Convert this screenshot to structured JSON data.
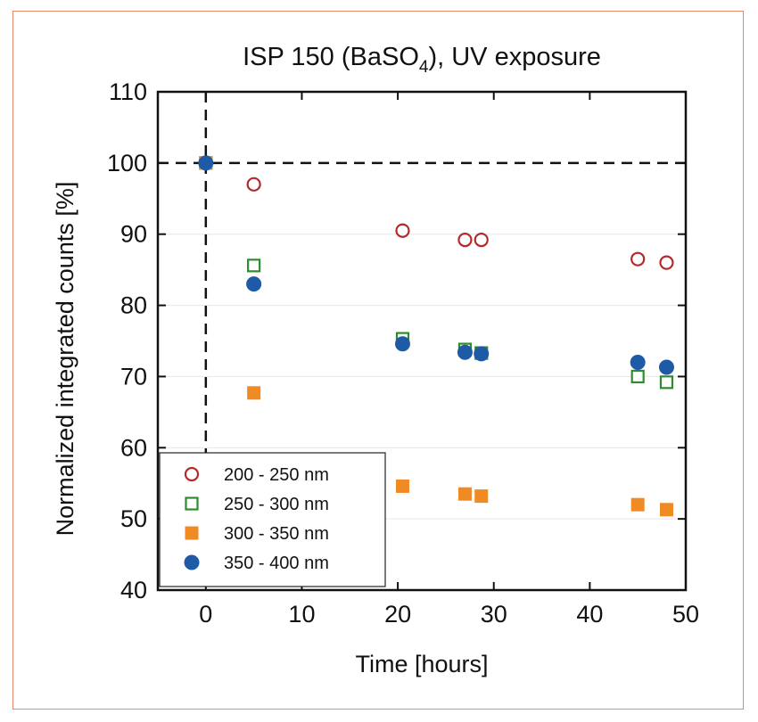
{
  "chart_data": {
    "type": "scatter",
    "title": {
      "main": "ISP 150 (BaSO",
      "subscript": "4",
      "tail": "), UV exposure"
    },
    "xlabel": "Time [hours]",
    "ylabel": "Normalized integrated counts [%]",
    "xlim": [
      -5,
      50
    ],
    "ylim": [
      40,
      110
    ],
    "xticks": [
      0,
      10,
      20,
      30,
      40,
      50
    ],
    "yticks": [
      40,
      50,
      60,
      70,
      80,
      90,
      100,
      110
    ],
    "reference_lines": {
      "x": 0,
      "y": 100,
      "style": "dashed"
    },
    "legend_position": "bottom-left",
    "series": [
      {
        "name": "200 - 250 nm",
        "marker": "open-circle",
        "color": "#b22a2a",
        "points": [
          [
            0,
            100
          ],
          [
            5,
            97
          ],
          [
            20.5,
            90.5
          ],
          [
            27,
            89.2
          ],
          [
            28.7,
            89.2
          ],
          [
            45,
            86.5
          ],
          [
            48,
            86
          ]
        ]
      },
      {
        "name": "250 - 300 nm",
        "marker": "open-square",
        "color": "#2e8b2e",
        "points": [
          [
            0,
            100
          ],
          [
            5,
            85.6
          ],
          [
            20.5,
            75.3
          ],
          [
            27,
            73.8
          ],
          [
            28.7,
            73.3
          ],
          [
            45,
            70
          ],
          [
            48,
            69.2
          ]
        ]
      },
      {
        "name": "300 - 350 nm",
        "marker": "filled-square",
        "color": "#f08a24",
        "points": [
          [
            0,
            100
          ],
          [
            5,
            67.7
          ],
          [
            20.5,
            54.6
          ],
          [
            27,
            53.5
          ],
          [
            28.7,
            53.2
          ],
          [
            45,
            52
          ],
          [
            48,
            51.3
          ]
        ]
      },
      {
        "name": "350 - 400 nm",
        "marker": "filled-circle",
        "color": "#1f5aa6",
        "points": [
          [
            0,
            100
          ],
          [
            5,
            83
          ],
          [
            20.5,
            74.6
          ],
          [
            27,
            73.4
          ],
          [
            28.7,
            73.2
          ],
          [
            45,
            72
          ],
          [
            48,
            71.3
          ]
        ]
      }
    ]
  }
}
